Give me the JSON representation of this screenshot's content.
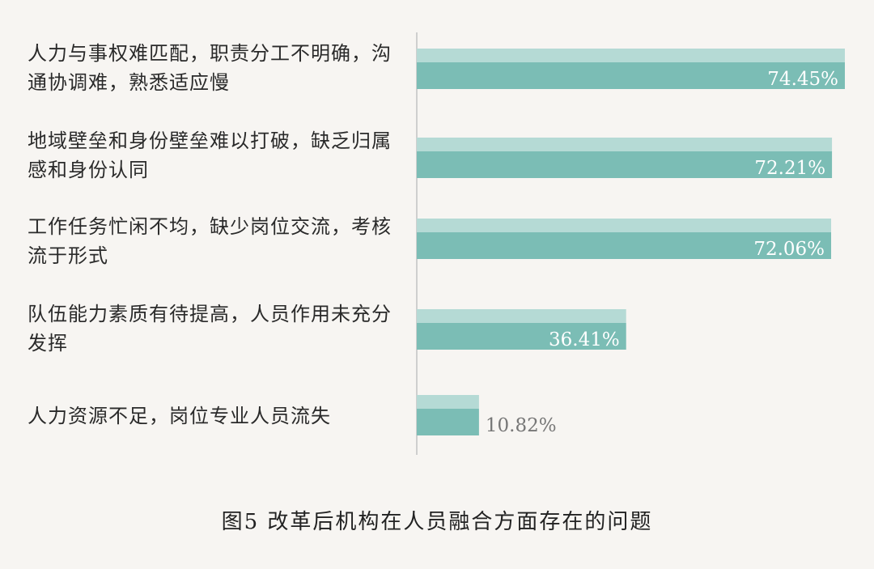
{
  "chart_data": {
    "type": "bar",
    "orientation": "horizontal",
    "title": "图5 改革后机构在人员融合方面存在的问题",
    "categories": [
      "人力与事权难匹配，职责分工不明确，沟通协调难，熟悉适应慢",
      "地域壁垒和身份壁垒难以打破，缺乏归属感和身份认同",
      "工作任务忙闲不均，缺少岗位交流，考核流于形式",
      "队伍能力素质有待提高，人员作用未充分发挥",
      "人力资源不足，岗位专业人员流失"
    ],
    "values": [
      74.45,
      72.21,
      72.06,
      36.41,
      10.82
    ],
    "labels": [
      "74.45%",
      "72.21%",
      "72.06%",
      "36.41%",
      "10.82%"
    ],
    "xlim": [
      0,
      75
    ],
    "grid": false,
    "colors": {
      "bar_light": "#b5dad5",
      "bar_dark": "#7bbdb5",
      "axis": "#cfcfcf",
      "background": "#f7f5f2"
    }
  }
}
